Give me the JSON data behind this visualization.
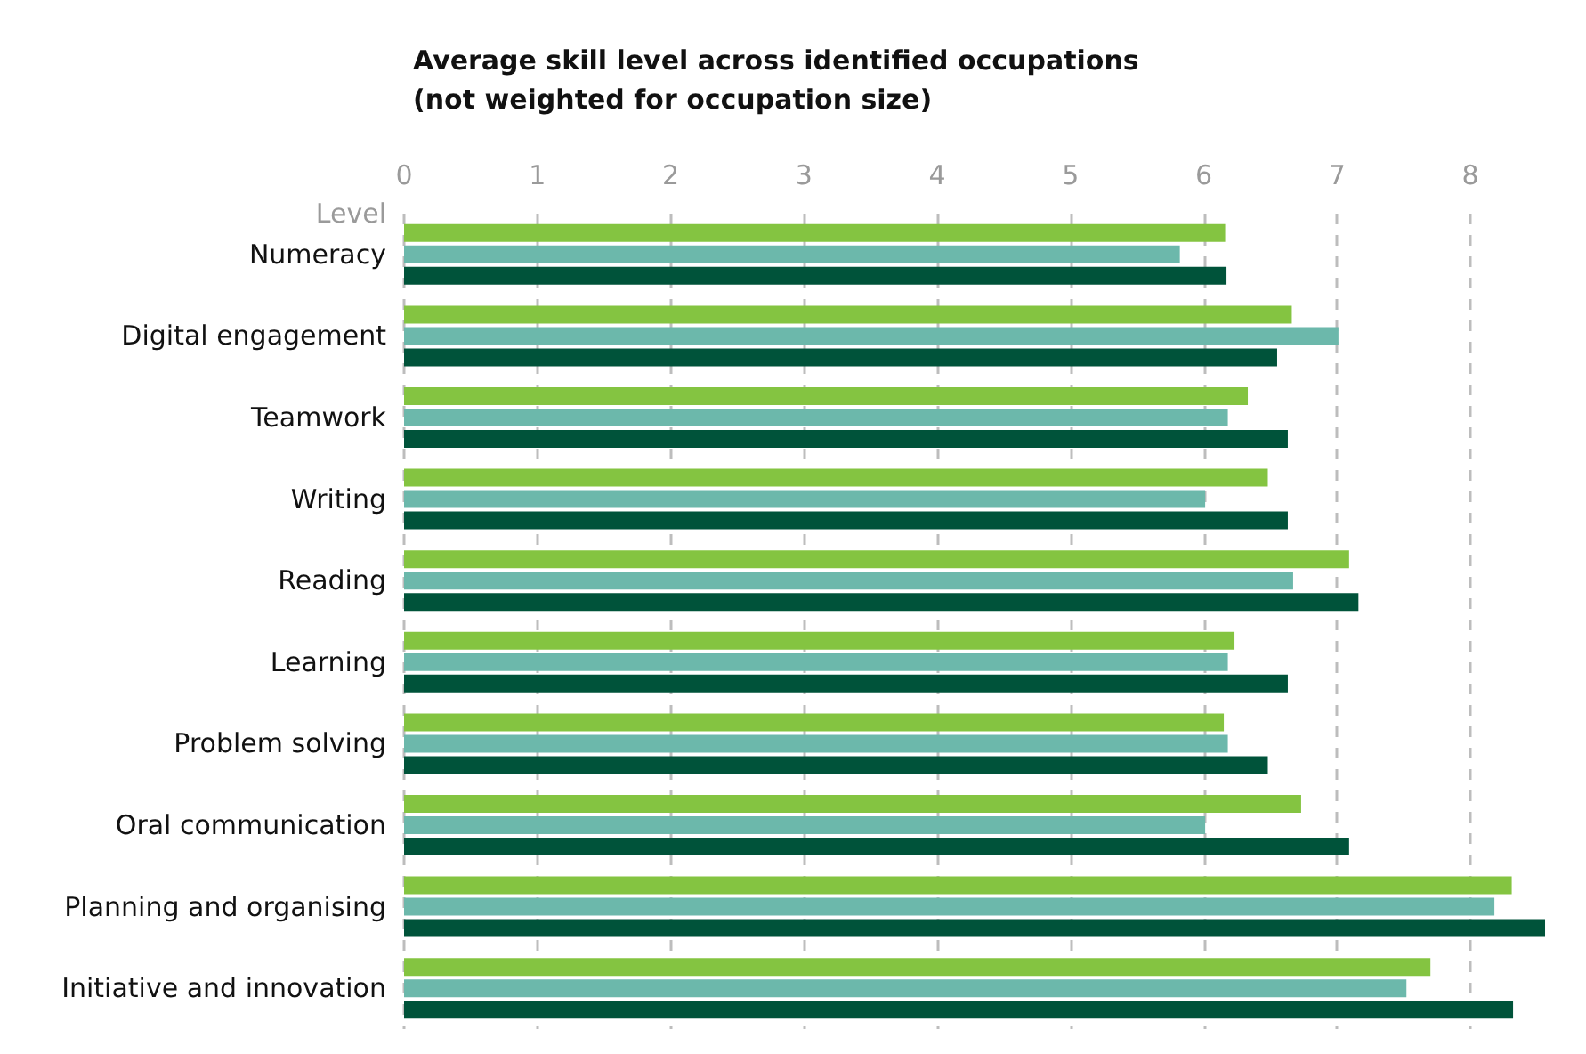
{
  "chart_data": {
    "type": "bar",
    "orientation": "horizontal",
    "title": "Average skill level across identified occupations\n(not weighted for occupation size)",
    "xlabel": "Level",
    "categories": [
      "Numeracy",
      "Digital engagement",
      "Teamwork",
      "Writing",
      "Reading",
      "Learning",
      "Problem solving",
      "Oral communication",
      "Planning and organising",
      "Initiative and innovation"
    ],
    "series": [
      {
        "color": "#84c441",
        "values": [
          6.16,
          6.66,
          6.33,
          6.48,
          7.09,
          6.23,
          6.15,
          6.73,
          8.31,
          7.7
        ]
      },
      {
        "color": "#6cb8ab",
        "values": [
          5.82,
          7.01,
          6.18,
          6.01,
          6.67,
          6.18,
          6.18,
          6.01,
          8.18,
          7.52
        ]
      },
      {
        "color": "#00533a",
        "values": [
          6.17,
          6.55,
          6.63,
          6.63,
          7.16,
          6.63,
          6.48,
          7.09,
          8.56,
          8.32
        ]
      }
    ],
    "xlim": [
      0,
      8.6
    ],
    "xticks": [
      0,
      1,
      2,
      3,
      4,
      5,
      6,
      7,
      8
    ],
    "grid": "x"
  }
}
